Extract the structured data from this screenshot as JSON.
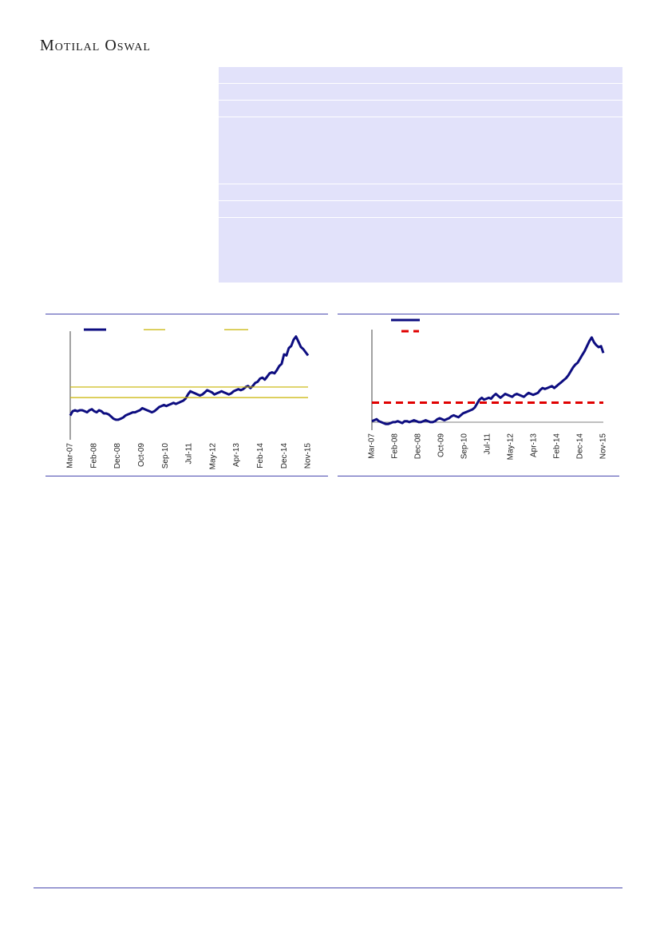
{
  "header": {
    "brand": "Motilal Oswal"
  },
  "colors": {
    "series": "#0d0d80",
    "band": "#c8b400",
    "average": "#e00000",
    "rule": "#4a4ab0",
    "table_bg": "#e2e2fa"
  },
  "chart_data": [
    {
      "type": "line",
      "title": "",
      "x_tick_labels": [
        "Mar-07",
        "Feb-08",
        "Dec-08",
        "Oct-09",
        "Sep-10",
        "Jul-11",
        "May-12",
        "Apr-13",
        "Feb-14",
        "Dec-14",
        "Nov-15"
      ],
      "ylim": [
        0,
        100
      ],
      "legend": "top",
      "series": [
        {
          "style": "solid-line",
          "values": [
            20,
            24,
            25,
            24,
            25,
            25,
            24,
            23,
            25,
            26,
            24,
            23,
            25,
            24,
            22,
            22,
            21,
            19,
            17,
            16,
            16,
            17,
            18,
            20,
            21,
            22,
            23,
            23,
            24,
            25,
            27,
            26,
            25,
            24,
            23,
            24,
            26,
            28,
            29,
            30,
            29,
            30,
            31,
            32,
            31,
            32,
            33,
            34,
            36,
            40,
            43,
            42,
            41,
            40,
            39,
            40,
            42,
            44,
            43,
            42,
            40,
            41,
            42,
            43,
            42,
            41,
            40,
            41,
            43,
            44,
            45,
            44,
            45,
            47,
            48,
            46,
            48,
            51,
            52,
            55,
            56,
            54,
            57,
            60,
            61,
            60,
            63,
            67,
            69,
            78,
            77,
            84,
            86,
            92,
            95,
            90,
            85,
            83,
            80,
            77
          ]
        },
        {
          "style": "band-line",
          "values": [
            47
          ]
        },
        {
          "style": "band-line",
          "values": [
            37
          ]
        }
      ]
    },
    {
      "type": "line",
      "title": "",
      "x_tick_labels": [
        "Mar-07",
        "Feb-08",
        "Dec-08",
        "Oct-09",
        "Sep-10",
        "Jul-11",
        "May-12",
        "Apr-13",
        "Feb-14",
        "Dec-14",
        "Nov-15"
      ],
      "ylim": [
        0,
        100
      ],
      "legend": "top-left",
      "series": [
        {
          "style": "solid-line",
          "values": [
            6,
            7,
            8,
            6,
            5,
            4,
            3,
            3,
            4,
            5,
            5,
            6,
            5,
            4,
            6,
            6,
            5,
            6,
            7,
            6,
            5,
            5,
            6,
            7,
            6,
            5,
            5,
            6,
            8,
            9,
            8,
            7,
            8,
            9,
            11,
            12,
            11,
            10,
            12,
            14,
            15,
            16,
            17,
            18,
            20,
            24,
            28,
            30,
            28,
            29,
            30,
            29,
            32,
            34,
            32,
            30,
            32,
            34,
            33,
            32,
            31,
            33,
            34,
            33,
            32,
            31,
            33,
            35,
            34,
            33,
            34,
            35,
            38,
            40,
            39,
            40,
            41,
            42,
            40,
            42,
            44,
            46,
            48,
            50,
            53,
            57,
            61,
            64,
            66,
            70,
            74,
            78,
            83,
            88,
            92,
            87,
            84,
            82,
            83,
            76
          ]
        },
        {
          "style": "dashed-line",
          "values": [
            25
          ]
        }
      ]
    }
  ]
}
